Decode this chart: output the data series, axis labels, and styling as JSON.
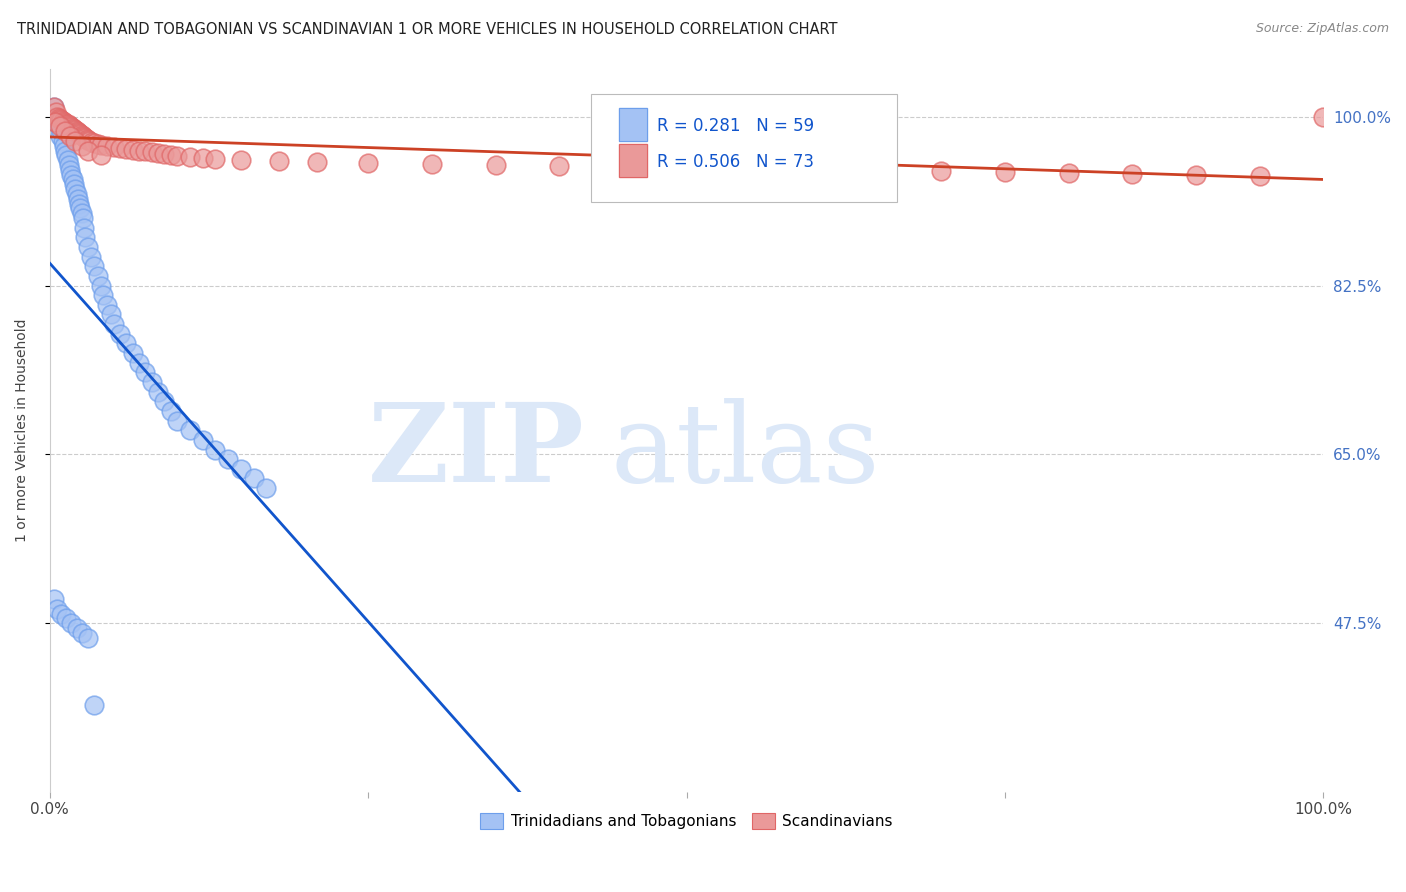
{
  "title": "TRINIDADIAN AND TOBAGONIAN VS SCANDINAVIAN 1 OR MORE VEHICLES IN HOUSEHOLD CORRELATION CHART",
  "source": "Source: ZipAtlas.com",
  "ylabel": "1 or more Vehicles in Household",
  "r_trinidadian": 0.281,
  "n_trinidadian": 59,
  "r_scandinavian": 0.506,
  "n_scandinavian": 73,
  "xlim": [
    0.0,
    1.0
  ],
  "ylim": [
    0.3,
    1.05
  ],
  "ytick_positions": [
    0.475,
    0.65,
    0.825,
    1.0
  ],
  "ytick_labels": [
    "47.5%",
    "65.0%",
    "82.5%",
    "100.0%"
  ],
  "blue_color": "#a4c2f4",
  "blue_edge_color": "#6d9eeb",
  "pink_color": "#ea9999",
  "pink_edge_color": "#e06666",
  "blue_line_color": "#1155cc",
  "pink_line_color": "#cc4125",
  "legend_r_color": "#1155cc",
  "legend_n_color": "#1155cc",
  "right_tick_color": "#4472c4",
  "background_color": "#ffffff",
  "grid_color": "#cccccc",
  "watermark_color": "#dce8f8",
  "trin_x": [
    0.003,
    0.005,
    0.007,
    0.008,
    0.009,
    0.01,
    0.011,
    0.012,
    0.013,
    0.014,
    0.015,
    0.016,
    0.017,
    0.018,
    0.019,
    0.02,
    0.021,
    0.022,
    0.023,
    0.024,
    0.025,
    0.026,
    0.027,
    0.028,
    0.03,
    0.032,
    0.035,
    0.038,
    0.04,
    0.042,
    0.045,
    0.048,
    0.05,
    0.055,
    0.06,
    0.065,
    0.07,
    0.075,
    0.08,
    0.085,
    0.09,
    0.095,
    0.1,
    0.11,
    0.12,
    0.13,
    0.14,
    0.15,
    0.16,
    0.17,
    0.003,
    0.006,
    0.009,
    0.013,
    0.017,
    0.021,
    0.025,
    0.03,
    0.035
  ],
  "trin_y": [
    1.01,
    1.0,
    0.99,
    0.98,
    0.985,
    0.975,
    0.97,
    0.965,
    0.96,
    0.955,
    0.95,
    0.945,
    0.94,
    0.935,
    0.93,
    0.925,
    0.92,
    0.915,
    0.91,
    0.905,
    0.9,
    0.895,
    0.885,
    0.875,
    0.865,
    0.855,
    0.845,
    0.835,
    0.825,
    0.815,
    0.805,
    0.795,
    0.785,
    0.775,
    0.765,
    0.755,
    0.745,
    0.735,
    0.725,
    0.715,
    0.705,
    0.695,
    0.685,
    0.675,
    0.665,
    0.655,
    0.645,
    0.635,
    0.625,
    0.615,
    0.5,
    0.49,
    0.485,
    0.48,
    0.475,
    0.47,
    0.465,
    0.46,
    0.39
  ],
  "scan_x": [
    0.003,
    0.005,
    0.006,
    0.007,
    0.008,
    0.009,
    0.01,
    0.011,
    0.012,
    0.013,
    0.014,
    0.015,
    0.016,
    0.017,
    0.018,
    0.019,
    0.02,
    0.021,
    0.022,
    0.023,
    0.024,
    0.025,
    0.026,
    0.027,
    0.028,
    0.029,
    0.03,
    0.031,
    0.033,
    0.035,
    0.038,
    0.04,
    0.045,
    0.05,
    0.055,
    0.06,
    0.065,
    0.07,
    0.075,
    0.08,
    0.085,
    0.09,
    0.095,
    0.1,
    0.11,
    0.12,
    0.13,
    0.15,
    0.18,
    0.21,
    0.25,
    0.3,
    0.35,
    0.4,
    0.45,
    0.5,
    0.6,
    0.65,
    0.7,
    0.75,
    0.8,
    0.85,
    0.9,
    0.95,
    1.0,
    0.004,
    0.008,
    0.012,
    0.016,
    0.02,
    0.025,
    0.03,
    0.04
  ],
  "scan_y": [
    1.01,
    1.005,
    1.0,
    0.999,
    0.998,
    0.997,
    0.996,
    0.995,
    0.994,
    0.993,
    0.992,
    0.991,
    0.99,
    0.989,
    0.988,
    0.987,
    0.986,
    0.985,
    0.984,
    0.983,
    0.982,
    0.981,
    0.98,
    0.979,
    0.978,
    0.977,
    0.976,
    0.975,
    0.974,
    0.973,
    0.972,
    0.971,
    0.97,
    0.969,
    0.968,
    0.967,
    0.966,
    0.965,
    0.964,
    0.963,
    0.962,
    0.961,
    0.96,
    0.959,
    0.958,
    0.957,
    0.956,
    0.955,
    0.954,
    0.953,
    0.952,
    0.951,
    0.95,
    0.949,
    0.948,
    0.947,
    0.946,
    0.945,
    0.944,
    0.943,
    0.942,
    0.941,
    0.94,
    0.939,
    1.0,
    0.995,
    0.99,
    0.985,
    0.98,
    0.975,
    0.97,
    0.965,
    0.96
  ]
}
